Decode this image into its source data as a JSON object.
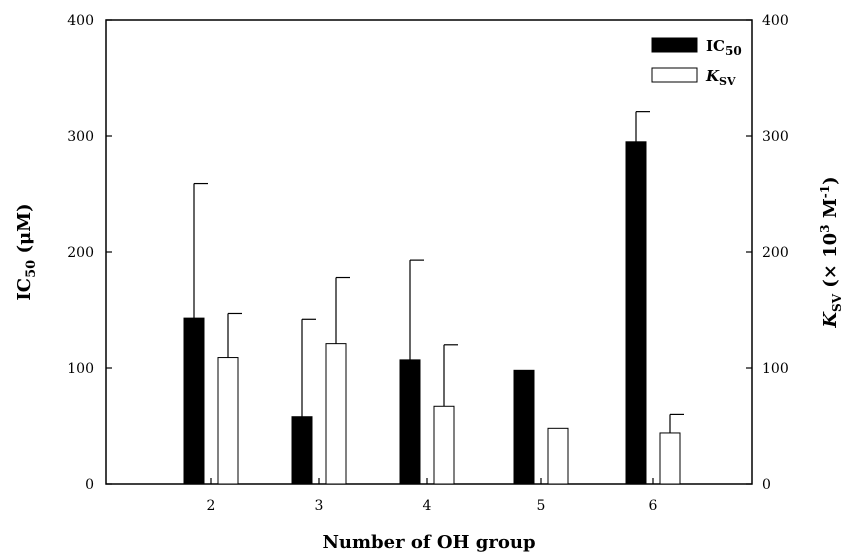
{
  "chart_data": {
    "type": "bar",
    "categories": [
      "2",
      "3",
      "4",
      "5",
      "6"
    ],
    "xlabel": "Number of OH group",
    "ylabel": {
      "base": "IC",
      "sub": "50",
      "rest": " (μM)"
    },
    "y2label": {
      "base": "K",
      "sub": "SV",
      "rest": " (× 10",
      "sup": "3",
      "rest2": " M",
      "sup2": "-1",
      "end": ")"
    },
    "ylim": [
      0,
      400
    ],
    "y2lim": [
      0,
      400
    ],
    "yticks": [
      0,
      100,
      200,
      300,
      400
    ],
    "y2ticks": [
      0,
      100,
      200,
      300,
      400
    ],
    "legend_position": "top-right",
    "series": [
      {
        "name": {
          "base": "IC",
          "sub": "50"
        },
        "axis": "left",
        "fill": "#000000",
        "values": [
          143,
          58,
          107,
          98,
          295
        ],
        "error_upper": [
          116,
          84,
          86,
          null,
          26
        ]
      },
      {
        "name": {
          "base": "K",
          "sub": "SV"
        },
        "axis": "right",
        "fill": "#ffffff",
        "values": [
          109,
          121,
          67,
          48,
          44
        ],
        "error_upper": [
          38,
          57,
          53,
          null,
          16
        ]
      }
    ]
  }
}
